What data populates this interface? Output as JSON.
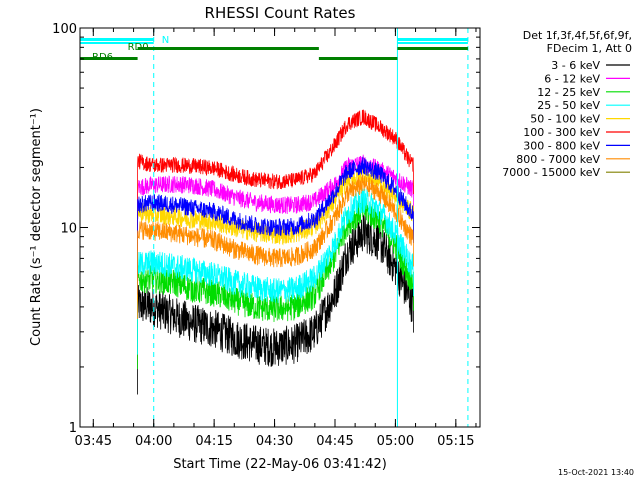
{
  "chart_data": {
    "type": "line",
    "title": "RHESSI Count Rates",
    "xlabel": "Start Time (22-May-06 03:41:42)",
    "ylabel": "Count Rate (s⁻¹ detector segment⁻¹)",
    "y_scale": "log",
    "ylim": [
      1,
      100
    ],
    "xlim": [
      "03:41:42",
      "05:21:00"
    ],
    "x_ticks": [
      "03:45",
      "04:00",
      "04:15",
      "04:30",
      "04:45",
      "05:00",
      "05:15"
    ],
    "y_ticks": [
      "1",
      "10",
      "100"
    ],
    "grid": false,
    "legend_position": "top-right",
    "legend_header": [
      "Det 1f,3f,4f,5f,6f,9f,",
      "FDecim 1, Att 0"
    ],
    "timestamp": "15-Oct-2021 13:40",
    "data_start": "03:56:00",
    "data_end": "05:04:30",
    "series": [
      {
        "name": "3 - 6 keV",
        "color": "#000000",
        "x": [
          "03:56",
          "04:00",
          "04:05",
          "04:10",
          "04:15",
          "04:20",
          "04:25",
          "04:30",
          "04:35",
          "04:40",
          "04:45",
          "04:48",
          "04:52",
          "04:56",
          "05:00",
          "05:04"
        ],
        "values": [
          4.1,
          4.0,
          3.6,
          3.3,
          3.1,
          2.8,
          2.6,
          2.5,
          2.6,
          3.0,
          4.7,
          7.5,
          9.5,
          8.5,
          6.3,
          4.2
        ]
      },
      {
        "name": "6 - 12 keV",
        "color": "#ff00ff",
        "x": [
          "03:56",
          "04:00",
          "04:05",
          "04:10",
          "04:15",
          "04:20",
          "04:25",
          "04:30",
          "04:35",
          "04:40",
          "04:45",
          "04:48",
          "04:52",
          "04:56",
          "05:00",
          "05:04"
        ],
        "values": [
          15.9,
          16.3,
          16.5,
          16.3,
          15.5,
          14.2,
          13.4,
          13.0,
          12.9,
          13.6,
          16.5,
          20.3,
          21.0,
          19.5,
          17.8,
          15.6
        ]
      },
      {
        "name": "12 - 25 keV",
        "color": "#00dd00",
        "x": [
          "03:56",
          "04:00",
          "04:05",
          "04:10",
          "04:15",
          "04:20",
          "04:25",
          "04:30",
          "04:35",
          "04:40",
          "04:45",
          "04:48",
          "04:52",
          "04:56",
          "05:00",
          "05:04"
        ],
        "values": [
          5.5,
          5.5,
          5.3,
          4.9,
          4.7,
          4.3,
          4.0,
          3.9,
          4.0,
          4.6,
          7.2,
          10.5,
          12.3,
          11.0,
          8.2,
          5.4
        ]
      },
      {
        "name": "25 - 50 keV",
        "color": "#00ffff",
        "x": [
          "03:56",
          "04:00",
          "04:05",
          "04:10",
          "04:15",
          "04:20",
          "04:25",
          "04:30",
          "04:35",
          "04:40",
          "04:45",
          "04:48",
          "04:52",
          "04:56",
          "05:00",
          "05:04"
        ],
        "values": [
          6.5,
          6.7,
          6.4,
          6.1,
          5.8,
          5.3,
          5.0,
          4.8,
          4.9,
          5.6,
          8.3,
          11.8,
          13.8,
          12.3,
          9.3,
          6.4
        ]
      },
      {
        "name": "50 - 100 keV",
        "color": "#ffd700",
        "x": [
          "03:56",
          "04:00",
          "04:05",
          "04:10",
          "04:15",
          "04:20",
          "04:25",
          "04:30",
          "04:35",
          "04:40",
          "04:45",
          "04:48",
          "04:52",
          "04:56",
          "05:00",
          "05:04"
        ],
        "values": [
          12.0,
          11.6,
          11.4,
          11.0,
          10.7,
          10.0,
          9.5,
          9.2,
          9.3,
          10.2,
          13.6,
          17.3,
          18.3,
          16.8,
          14.3,
          12.0
        ]
      },
      {
        "name": "100 - 300 keV",
        "color": "#ff0000",
        "x": [
          "03:56",
          "04:00",
          "04:05",
          "04:10",
          "04:15",
          "04:20",
          "04:25",
          "04:30",
          "04:35",
          "04:40",
          "04:45",
          "04:48",
          "04:52",
          "04:56",
          "05:00",
          "05:04"
        ],
        "values": [
          21.5,
          20.5,
          20.6,
          20.3,
          19.8,
          18.4,
          17.4,
          17.0,
          17.2,
          18.6,
          26.0,
          33.0,
          36.0,
          32.0,
          28.0,
          20.8
        ]
      },
      {
        "name": "300 - 800 keV",
        "color": "#0000ff",
        "x": [
          "03:56",
          "04:00",
          "04:05",
          "04:10",
          "04:15",
          "04:20",
          "04:25",
          "04:30",
          "04:35",
          "04:40",
          "04:45",
          "04:48",
          "04:52",
          "04:56",
          "05:00",
          "05:04"
        ],
        "values": [
          13.0,
          13.3,
          13.0,
          12.5,
          12.0,
          11.0,
          10.3,
          10.0,
          10.1,
          11.0,
          15.0,
          19.0,
          20.5,
          18.7,
          15.5,
          11.8
        ]
      },
      {
        "name": "800 - 7000 keV",
        "color": "#ff8c00",
        "x": [
          "03:56",
          "04:00",
          "04:05",
          "04:10",
          "04:15",
          "04:20",
          "04:25",
          "04:30",
          "04:35",
          "04:40",
          "04:45",
          "04:48",
          "04:52",
          "04:56",
          "05:00",
          "05:04"
        ],
        "values": [
          9.8,
          9.6,
          9.4,
          9.0,
          8.6,
          7.8,
          7.3,
          7.0,
          7.1,
          7.9,
          11.2,
          14.8,
          16.5,
          15.0,
          12.0,
          9.0
        ]
      },
      {
        "name": "7000 - 15000 keV",
        "color": "#808000",
        "x": [],
        "values": []
      }
    ],
    "attenuator_bars": [
      {
        "label": "N",
        "color": "#00ffff",
        "from": "03:41:42",
        "to": "04:00:00"
      },
      {
        "label": "",
        "color": "#00ffff",
        "from": "05:00:30",
        "to": "05:18:00"
      }
    ],
    "decimation_bars": [
      {
        "label": "RD0",
        "color": "#008000",
        "from": "03:56:00",
        "to": "04:41:00"
      },
      {
        "label": "RD6",
        "color": "#008000",
        "from": "03:41:42",
        "to": "03:56:00"
      },
      {
        "label": "",
        "color": "#008000",
        "from": "04:41:00",
        "to": "05:00:30"
      },
      {
        "label": "",
        "color": "#008000",
        "from": "05:00:30",
        "to": "05:18:00"
      }
    ],
    "markers": [
      {
        "time": "04:00:00",
        "style": "dashed",
        "color": "#00ffff"
      },
      {
        "time": "05:00:30",
        "style": "solid",
        "color": "#00ffff"
      },
      {
        "time": "05:18:00",
        "style": "dashed",
        "color": "#00ffff"
      }
    ]
  }
}
